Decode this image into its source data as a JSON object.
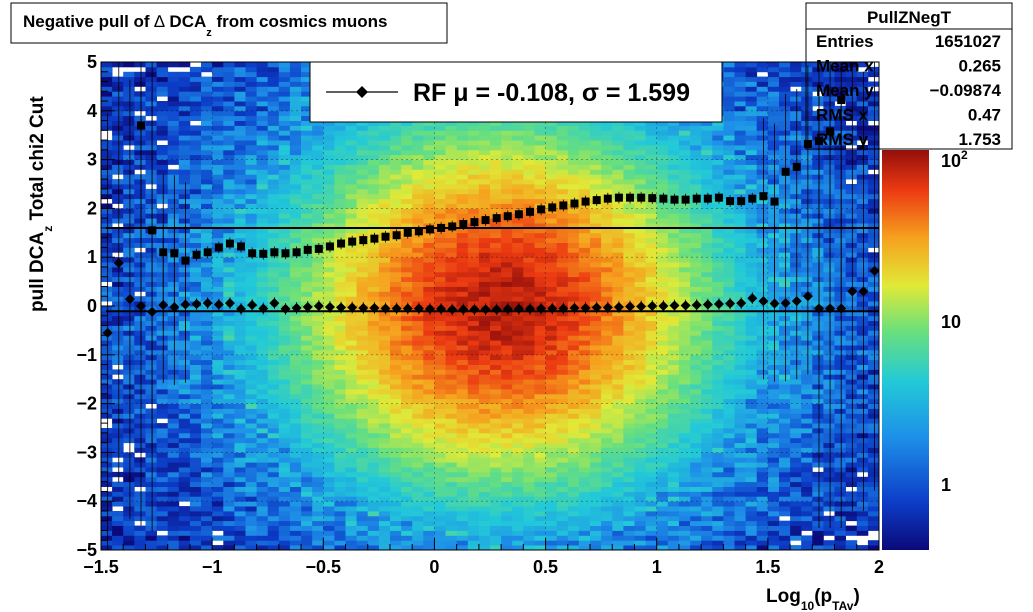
{
  "title": {
    "prefix": "Negative pull of ",
    "symbol": "∆",
    "main": " DCA",
    "sub": "z",
    "suffix": "  from cosmics muons"
  },
  "stats": {
    "name": "PullZNegT",
    "rows": [
      {
        "label": "Entries",
        "value": "1651027"
      },
      {
        "label": "Mean x",
        "value": "0.265"
      },
      {
        "label": "Mean y",
        "value": "−0.09874"
      },
      {
        "label": "RMS x",
        "value": "0.47"
      },
      {
        "label": "RMS y",
        "value": "1.753"
      }
    ]
  },
  "fit_legend": {
    "text": "RF μ = -0.108, σ =   1.599"
  },
  "axes": {
    "ylabel": {
      "main": "pull DCA",
      "sub": "z",
      "tail": "    Total chi2 Cut"
    },
    "xlabel": {
      "main": "Log",
      "sub1": "10",
      "mid": "(p",
      "sub2": "TAv",
      "tail": ")"
    }
  },
  "colors": {
    "fit_line": "#000000",
    "markers": "#000000"
  },
  "chart_data": {
    "type": "heatmap",
    "xlim": [
      -1.5,
      2
    ],
    "ylim": [
      -5,
      5
    ],
    "z_scale": "log",
    "z_tick_labels": [
      "1",
      "10",
      "10²"
    ],
    "x_ticks": [
      -1.5,
      -1,
      -0.5,
      0,
      0.5,
      1,
      1.5,
      2
    ],
    "x_tick_labels": [
      "−1.5",
      "−1",
      "−0.5",
      "0",
      "0.5",
      "1",
      "1.5",
      "2"
    ],
    "y_ticks": [
      -5,
      -4,
      -3,
      -2,
      -1,
      0,
      1,
      2,
      3,
      4,
      5
    ],
    "y_tick_labels": [
      "−5",
      "−4",
      "−3",
      "−2",
      "−1",
      "0",
      "1",
      "2",
      "3",
      "4",
      "5"
    ],
    "density_peak": {
      "x": 0.3,
      "y": 0.0
    },
    "fit_lines": [
      {
        "name": "mu",
        "y": -0.108
      },
      {
        "name": "sigma",
        "y": 1.599
      }
    ],
    "series": [
      {
        "marker": "diamond",
        "x": [
          -1.47,
          -1.42,
          -1.37,
          -1.32,
          -1.27,
          -1.22,
          -1.17,
          -1.12,
          -1.07,
          -1.02,
          -0.97,
          -0.92,
          -0.87,
          -0.82,
          -0.77,
          -0.72,
          -0.67,
          -0.62,
          -0.57,
          -0.52,
          -0.47,
          -0.42,
          -0.37,
          -0.32,
          -0.27,
          -0.22,
          -0.17,
          -0.12,
          -0.07,
          -0.02,
          0.03,
          0.08,
          0.13,
          0.18,
          0.23,
          0.28,
          0.33,
          0.38,
          0.43,
          0.48,
          0.53,
          0.58,
          0.63,
          0.68,
          0.73,
          0.78,
          0.83,
          0.88,
          0.93,
          0.98,
          1.03,
          1.08,
          1.13,
          1.18,
          1.23,
          1.28,
          1.33,
          1.38,
          1.43,
          1.48,
          1.53,
          1.58,
          1.63,
          1.68,
          1.73,
          1.78,
          1.83,
          1.88,
          1.93,
          1.98
        ],
        "values": [
          -0.55,
          0.88,
          0.14,
          0.0,
          -0.12,
          0.02,
          -0.02,
          0.03,
          0.04,
          0.06,
          0.03,
          0.06,
          -0.06,
          0.02,
          -0.05,
          0.06,
          -0.06,
          -0.04,
          -0.02,
          0.0,
          -0.02,
          -0.03,
          -0.03,
          -0.04,
          -0.04,
          -0.05,
          -0.05,
          -0.05,
          -0.05,
          -0.06,
          -0.06,
          -0.07,
          -0.07,
          -0.07,
          -0.07,
          -0.07,
          -0.06,
          -0.06,
          -0.06,
          -0.05,
          -0.05,
          -0.05,
          -0.04,
          -0.04,
          -0.03,
          -0.03,
          -0.02,
          -0.01,
          -0.01,
          0.0,
          0.0,
          0.01,
          0.01,
          0.02,
          0.03,
          0.04,
          0.05,
          0.06,
          0.16,
          0.1,
          0.05,
          0.06,
          0.1,
          0.2,
          -0.05,
          -0.05,
          -0.05,
          0.3,
          0.3,
          0.72
        ]
      },
      {
        "marker": "square",
        "x": [
          -1.32,
          -1.27,
          -1.22,
          -1.17,
          -1.12,
          -1.07,
          -1.02,
          -0.97,
          -0.92,
          -0.87,
          -0.82,
          -0.77,
          -0.72,
          -0.67,
          -0.62,
          -0.57,
          -0.52,
          -0.47,
          -0.42,
          -0.37,
          -0.32,
          -0.27,
          -0.22,
          -0.17,
          -0.12,
          -0.07,
          -0.02,
          0.03,
          0.08,
          0.13,
          0.18,
          0.23,
          0.28,
          0.33,
          0.38,
          0.43,
          0.48,
          0.53,
          0.58,
          0.63,
          0.68,
          0.73,
          0.78,
          0.83,
          0.88,
          0.93,
          0.98,
          1.03,
          1.08,
          1.13,
          1.18,
          1.23,
          1.28,
          1.33,
          1.38,
          1.43,
          1.48,
          1.53,
          1.58,
          1.63,
          1.68,
          1.73,
          1.78,
          1.83
        ],
        "values": [
          3.7,
          1.55,
          1.1,
          1.08,
          0.93,
          1.05,
          1.1,
          1.2,
          1.28,
          1.22,
          1.08,
          1.07,
          1.1,
          1.08,
          1.1,
          1.15,
          1.17,
          1.22,
          1.28,
          1.32,
          1.35,
          1.38,
          1.42,
          1.45,
          1.5,
          1.53,
          1.57,
          1.6,
          1.63,
          1.68,
          1.72,
          1.76,
          1.8,
          1.84,
          1.88,
          1.93,
          1.98,
          2.02,
          2.06,
          2.1,
          2.14,
          2.17,
          2.2,
          2.22,
          2.22,
          2.22,
          2.21,
          2.2,
          2.18,
          2.18,
          2.2,
          2.2,
          2.22,
          2.15,
          2.15,
          2.2,
          2.25,
          2.14,
          2.75,
          2.85,
          3.32,
          3.38,
          3.58,
          4.22
        ]
      }
    ]
  }
}
